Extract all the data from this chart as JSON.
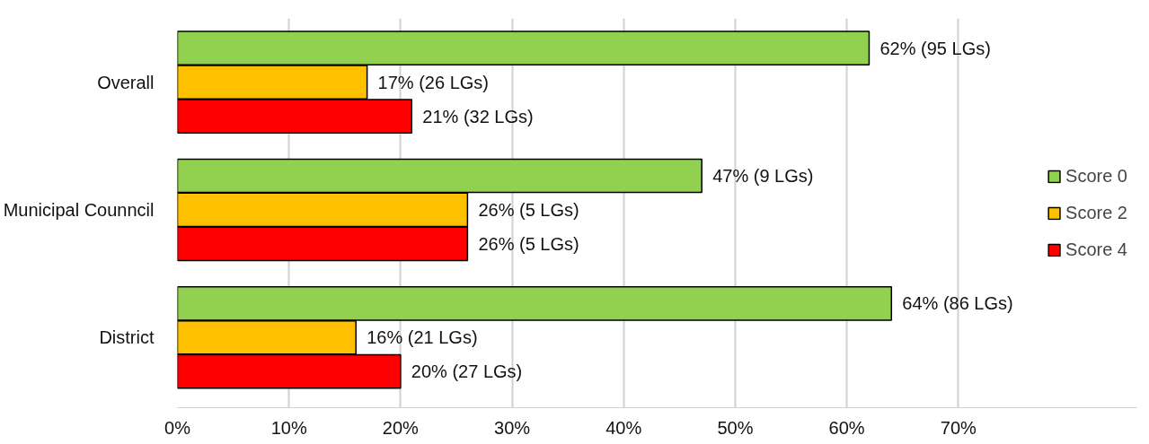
{
  "chart_data": {
    "type": "bar",
    "orientation": "horizontal",
    "categories": [
      "Overall",
      "Municipal Counncil",
      "District"
    ],
    "series": [
      {
        "name": "Score 0",
        "color": "#92d050",
        "values": [
          62,
          47,
          64
        ],
        "value_labels": [
          "62% (95 LGs)",
          "47% (9 LGs)",
          "64% (86 LGs)"
        ]
      },
      {
        "name": "Score 2",
        "color": "#ffc000",
        "values": [
          17,
          26,
          16
        ],
        "value_labels": [
          "17% (26 LGs)",
          "26% (5 LGs)",
          "16% (21 LGs)"
        ]
      },
      {
        "name": "Score 4",
        "color": "#ff0000",
        "values": [
          21,
          26,
          20
        ],
        "value_labels": [
          "21% (32 LGs)",
          "26% (5 LGs)",
          "20% (27 LGs)"
        ]
      }
    ],
    "xlim": [
      0,
      86
    ],
    "xticks": [
      {
        "value": 0,
        "label": "0%"
      },
      {
        "value": 10,
        "label": "10%"
      },
      {
        "value": 20,
        "label": "20%"
      },
      {
        "value": 30,
        "label": "30%"
      },
      {
        "value": 40,
        "label": "40%"
      },
      {
        "value": 50,
        "label": "50%"
      },
      {
        "value": 60,
        "label": "60%"
      },
      {
        "value": 70,
        "label": "70%"
      }
    ],
    "grid": "x",
    "legend": "right"
  }
}
